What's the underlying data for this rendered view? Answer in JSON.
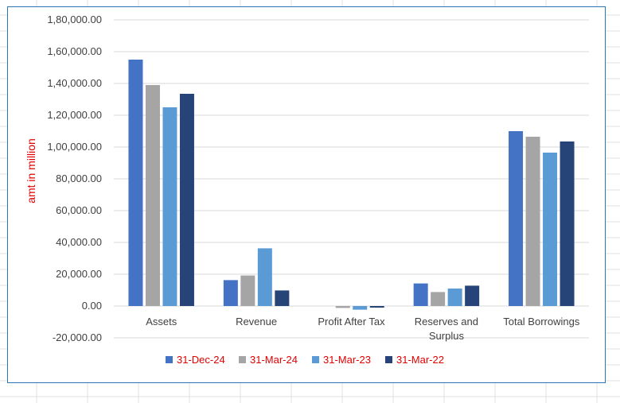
{
  "chart_data": {
    "type": "bar",
    "title": "",
    "xlabel": "",
    "ylabel": "amt in million",
    "ylim": [
      -20000,
      180000
    ],
    "ytick_step": 20000,
    "ytick_labels": [
      "-20,000.00",
      "0.00",
      "20,000.00",
      "40,000.00",
      "60,000.00",
      "80,000.00",
      "1,00,000.00",
      "1,20,000.00",
      "1,40,000.00",
      "1,60,000.00",
      "1,80,000.00"
    ],
    "categories": [
      "Assets",
      "Revenue",
      "Profit After Tax",
      "Reserves and Surplus",
      "Total Borrowings"
    ],
    "grid": true,
    "legend_position": "bottom",
    "series": [
      {
        "name": "31-Dec-24",
        "color": "#4472c4",
        "values": [
          155000,
          16300,
          0,
          14200,
          110000
        ]
      },
      {
        "name": "31-Mar-24",
        "color": "#a5a5a5",
        "values": [
          139000,
          19200,
          -1200,
          8800,
          106500
        ]
      },
      {
        "name": "31-Mar-23",
        "color": "#5b9bd5",
        "values": [
          125000,
          36300,
          -2300,
          11000,
          96500
        ]
      },
      {
        "name": "31-Mar-22",
        "color": "#264478",
        "values": [
          133500,
          9800,
          -1000,
          12800,
          103500
        ]
      }
    ],
    "gridline_color": "#d9d9d9",
    "axis_color": "#d9d9d9"
  }
}
